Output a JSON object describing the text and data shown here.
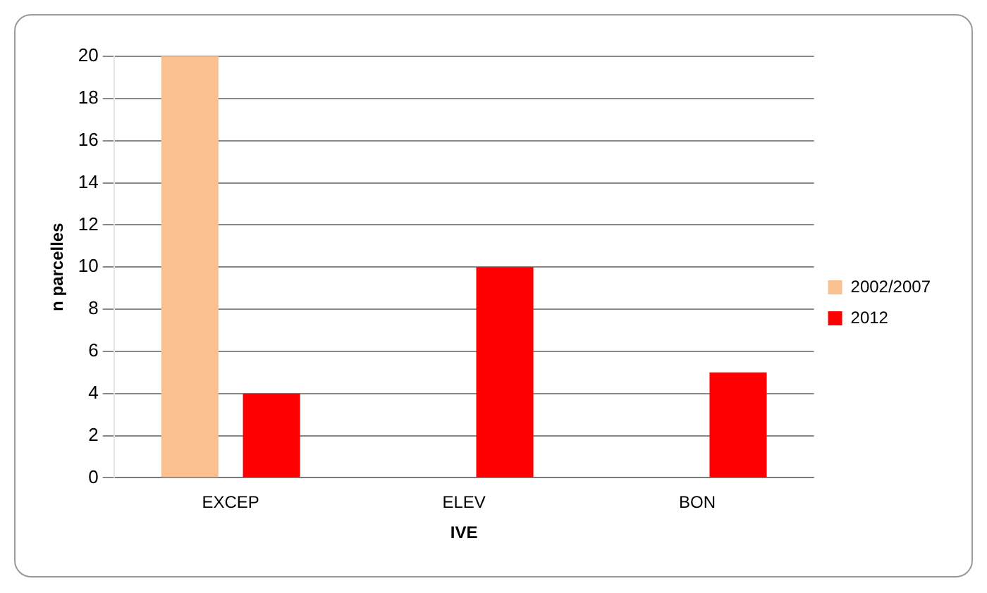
{
  "chart_data": {
    "type": "bar",
    "xlabel": "IVE",
    "ylabel": "n parcelles",
    "categories": [
      "EXCEP",
      "ELEV",
      "BON"
    ],
    "series": [
      {
        "name": "2002/2007",
        "color": "#fac090",
        "values": [
          20,
          0,
          0
        ]
      },
      {
        "name": "2012",
        "color": "#ff0000",
        "values": [
          4,
          10,
          5
        ]
      }
    ],
    "ylim": [
      0,
      20
    ],
    "yticks": [
      0,
      2,
      4,
      6,
      8,
      10,
      12,
      14,
      16,
      18,
      20
    ],
    "grid": "y",
    "legend": "right"
  }
}
